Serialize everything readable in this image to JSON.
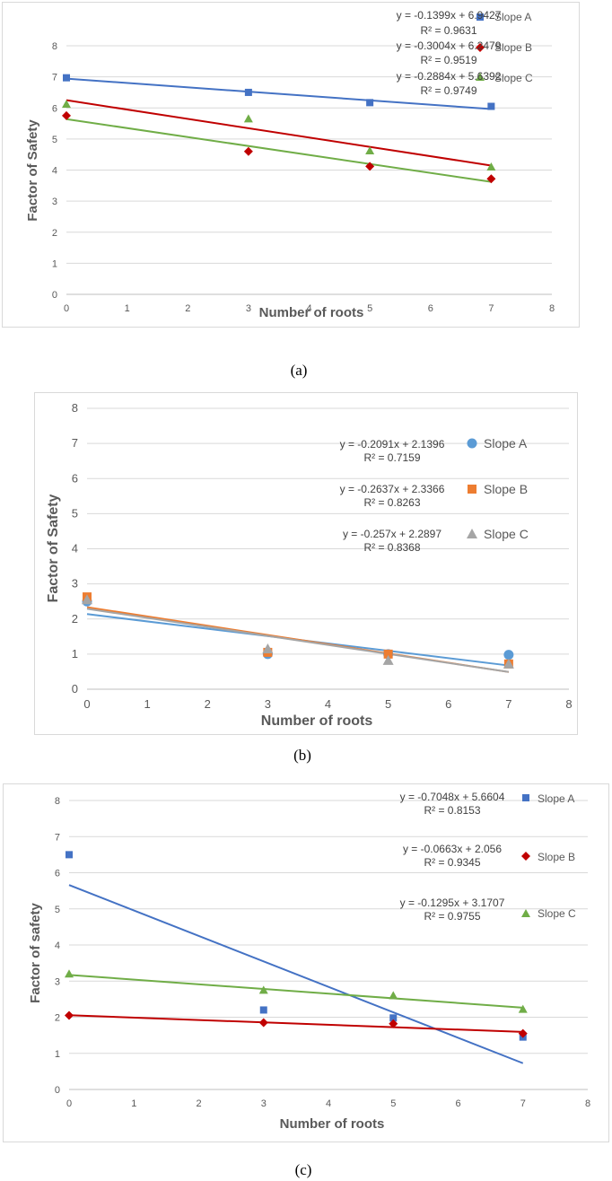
{
  "captions": {
    "a": "(a)",
    "b": "(b)",
    "c": "(c)"
  },
  "chart_data": [
    {
      "type": "scatter",
      "title": "",
      "xlabel": "Number of roots",
      "ylabel": "Factor of Safety",
      "xlim": [
        0,
        8
      ],
      "ylim": [
        0,
        8
      ],
      "xticks": [
        "0",
        "1",
        "2",
        "3",
        "4",
        "5",
        "6",
        "7",
        "8"
      ],
      "yticks": [
        "0",
        "1",
        "2",
        "3",
        "4",
        "5",
        "6",
        "7",
        "8"
      ],
      "grid": true,
      "legend_position": "top-right",
      "x": [
        0,
        3,
        5,
        7
      ],
      "series": [
        {
          "name": "Slope A",
          "marker": "square",
          "color": "#4472C4",
          "values": [
            6.97,
            6.5,
            6.17,
            6.05
          ],
          "trendline": {
            "slope": -0.1399,
            "intercept": 6.9427,
            "equation": "y = -0.1399x + 6.9427",
            "r2": "R² = 0.9631"
          }
        },
        {
          "name": "Slope B",
          "marker": "diamond",
          "color": "#C00000",
          "values": [
            5.75,
            4.6,
            4.12,
            3.72
          ],
          "trendline": {
            "slope": -0.3004,
            "intercept": 6.2479,
            "equation": "y = -0.3004x + 6.2479",
            "r2": "R² = 0.9519"
          }
        },
        {
          "name": "Slope C",
          "marker": "triangle",
          "color": "#70AD47",
          "values": [
            6.12,
            5.65,
            4.62,
            4.1
          ],
          "trendline": {
            "slope": -0.2884,
            "intercept": 5.6392,
            "equation": "y = -0.2884x + 5.6392",
            "r2": "R² = 0.9749"
          }
        }
      ]
    },
    {
      "type": "scatter",
      "title": "",
      "xlabel": "Number of roots",
      "ylabel": "Factor of Safety",
      "xlim": [
        0,
        8
      ],
      "ylim": [
        0,
        8
      ],
      "xticks": [
        "0",
        "1",
        "2",
        "3",
        "4",
        "5",
        "6",
        "7",
        "8"
      ],
      "yticks": [
        "0",
        "1",
        "2",
        "3",
        "4",
        "5",
        "6",
        "7",
        "8"
      ],
      "grid": true,
      "legend_position": "right",
      "x": [
        0,
        3,
        5,
        7
      ],
      "series": [
        {
          "name": "Slope A",
          "marker": "circle",
          "color": "#5B9BD5",
          "values": [
            2.5,
            1.0,
            1.0,
            0.98
          ],
          "trendline": {
            "slope": -0.2091,
            "intercept": 2.1396,
            "equation": "y = -0.2091x + 2.1396",
            "r2": "R² = 0.7159"
          }
        },
        {
          "name": "Slope B",
          "marker": "square",
          "color": "#ED7D31",
          "values": [
            2.63,
            1.05,
            1.0,
            0.72
          ],
          "trendline": {
            "slope": -0.2637,
            "intercept": 2.3366,
            "equation": "y = -0.2637x + 2.3366",
            "r2": "R² = 0.8263"
          }
        },
        {
          "name": "Slope C",
          "marker": "triangle",
          "color": "#A5A5A5",
          "values": [
            2.55,
            1.15,
            0.82,
            0.72
          ],
          "trendline": {
            "slope": -0.257,
            "intercept": 2.2897,
            "equation": "y = -0.257x + 2.2897",
            "r2": "R² = 0.8368"
          }
        }
      ]
    },
    {
      "type": "scatter",
      "title": "",
      "xlabel": "Number of roots",
      "ylabel": "Factor of safety",
      "xlim": [
        0,
        8
      ],
      "ylim": [
        0,
        8
      ],
      "xticks": [
        "0",
        "1",
        "2",
        "3",
        "4",
        "5",
        "6",
        "7",
        "8"
      ],
      "yticks": [
        "0",
        "1",
        "2",
        "3",
        "4",
        "5",
        "6",
        "7",
        "8"
      ],
      "grid": true,
      "legend_position": "top-right",
      "x": [
        0,
        3,
        5,
        7
      ],
      "series": [
        {
          "name": "Slope A",
          "marker": "square",
          "color": "#4472C4",
          "values": [
            6.5,
            2.2,
            1.98,
            1.45
          ],
          "trendline": {
            "slope": -0.7048,
            "intercept": 5.6604,
            "equation": "y = -0.7048x + 5.6604",
            "r2": "R² = 0.8153"
          }
        },
        {
          "name": "Slope B",
          "marker": "diamond",
          "color": "#C00000",
          "values": [
            2.05,
            1.85,
            1.82,
            1.55
          ],
          "trendline": {
            "slope": -0.0663,
            "intercept": 2.056,
            "equation": "y = -0.0663x + 2.056",
            "r2": "R² = 0.9345"
          }
        },
        {
          "name": "Slope C",
          "marker": "triangle",
          "color": "#70AD47",
          "values": [
            3.2,
            2.75,
            2.6,
            2.22
          ],
          "trendline": {
            "slope": -0.1295,
            "intercept": 3.1707,
            "equation": "y = -0.1295x + 3.1707",
            "r2": "R² = 0.9755"
          }
        }
      ]
    }
  ]
}
